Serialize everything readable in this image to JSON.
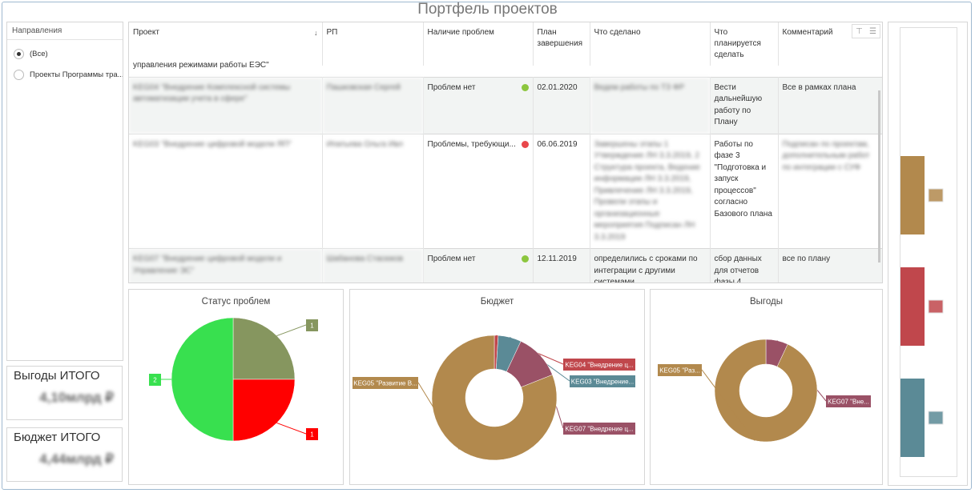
{
  "page": {
    "title": "Портфель проектов"
  },
  "filter": {
    "header": "Направления",
    "options": [
      {
        "label": "(Все)",
        "checked": true
      },
      {
        "label": "Проекты Программы тра...",
        "checked": false
      }
    ]
  },
  "kpis": {
    "benefits": {
      "title": "Выгоды ИТОГО",
      "value": "4,10млрд ₽"
    },
    "budget": {
      "title": "Бюджет ИТОГО",
      "value": "4,44млрд ₽"
    }
  },
  "table": {
    "columns": [
      "Проект",
      "РП",
      "Наличие проблем",
      "План завершения",
      "Что сделано",
      "Что планируется сделать",
      "Комментарий"
    ],
    "partial_row_text": "управления режимами работы ЕЭС\"",
    "rows": [
      {
        "project": "KEG04 \"Внедрение Комплексной системы автоматизации учета в сфере\"",
        "pm": "Пашковская Сергей",
        "problems": "Проблем нет",
        "status_color": "#8cc63e",
        "due": "02.01.2020",
        "done": "Ведем работы по ТЗ ФР",
        "planned": "Вести дальнейшую работу по Плану",
        "comment": "Все в рамках плана"
      },
      {
        "project": "KEG03 \"Внедрение цифровой модели ЯП\"",
        "pm": "Ипатьева Ольга Ивл",
        "problems": "Проблемы, требующи...",
        "status_color": "#e8474b",
        "due": "06.06.2019",
        "done": "Завершены этапы 1 Утверждение ЛН 3.3.2019, 2 Структура проекта, Ведение информации ЛН 3.3.2019, Привлечение ЛН 3.3.2019, Провели этапы и организационные мероприятия Подписан ЛН 3.3.2019",
        "planned": "Работы по фазе 3 \"Подготовка и запуск процессов\" согласно Базового плана",
        "comment": "Подписан по проектам, дополнительным работ по интеграции с СУФ"
      },
      {
        "project": "KEG07 \"Внедрение цифровой модели и Управление ЭС\"",
        "pm": "Шабанова Стасюков",
        "problems": "Проблем нет",
        "status_color": "#8cc63e",
        "due": "12.11.2019",
        "done": "определились с сроками по интеграции с другими системами",
        "planned": "сбор данных для отчетов фазы 4",
        "comment": "все по плану"
      }
    ]
  },
  "charts": {
    "status": {
      "title": "Статус проблем"
    },
    "budget": {
      "title": "Бюджет"
    },
    "benefits": {
      "title": "Выгоды"
    }
  },
  "chart_data": [
    {
      "type": "pie",
      "title": "Статус проблем",
      "slices": [
        {
          "label": "1",
          "value": 1,
          "color": "#86965f"
        },
        {
          "label": "1",
          "value": 1,
          "color": "#ff0000"
        },
        {
          "label": "2",
          "value": 2,
          "color": "#38e04f"
        }
      ]
    },
    {
      "type": "pie",
      "title": "Бюджет",
      "donut": true,
      "slices": [
        {
          "label": "KEG04 \"Внедрение ц...",
          "value": 1,
          "color": "#c0474c"
        },
        {
          "label": "KEG03 \"Внедрение...",
          "value": 6,
          "color": "#5b8a96"
        },
        {
          "label": "KEG07 \"Внедрение ц...",
          "value": 12,
          "color": "#9a5166"
        },
        {
          "label": "KEG05 \"Развитие В...",
          "value": 81,
          "color": "#b2894d"
        }
      ]
    },
    {
      "type": "pie",
      "title": "Выгоды",
      "donut": true,
      "slices": [
        {
          "label": "KEG07 \"Вне...",
          "value": 7,
          "color": "#9a5166"
        },
        {
          "label": "KEG05 \"Раз...",
          "value": 93,
          "color": "#b2894d"
        }
      ]
    },
    {
      "type": "bar",
      "values": [
        1,
        1,
        1
      ],
      "colors": [
        "#b2894d",
        "#c0474c",
        "#5b8a96"
      ]
    }
  ]
}
